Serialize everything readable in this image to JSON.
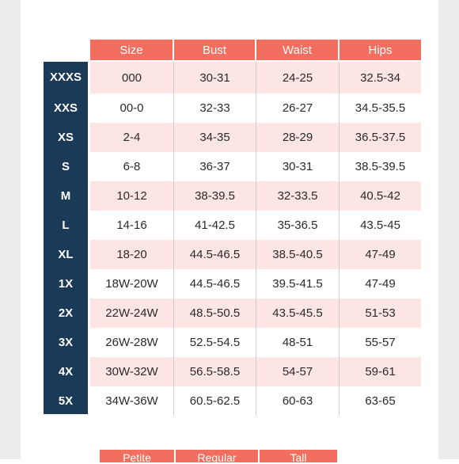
{
  "table": {
    "columns": [
      "Size",
      "Bust",
      "Waist",
      "Hips"
    ],
    "rows": [
      {
        "label": "XXXS",
        "size": "000",
        "bust": "30-31",
        "waist": "24-25",
        "hips": "32.5-34"
      },
      {
        "label": "XXS",
        "size": "00-0",
        "bust": "32-33",
        "waist": "26-27",
        "hips": "34.5-35.5"
      },
      {
        "label": "XS",
        "size": "2-4",
        "bust": "34-35",
        "waist": "28-29",
        "hips": "36.5-37.5"
      },
      {
        "label": "S",
        "size": "6-8",
        "bust": "36-37",
        "waist": "30-31",
        "hips": "38.5-39.5"
      },
      {
        "label": "M",
        "size": "10-12",
        "bust": "38-39.5",
        "waist": "32-33.5",
        "hips": "40.5-42"
      },
      {
        "label": "L",
        "size": "14-16",
        "bust": "41-42.5",
        "waist": "35-36.5",
        "hips": "43.5-45"
      },
      {
        "label": "XL",
        "size": "18-20",
        "bust": "44.5-46.5",
        "waist": "38.5-40.5",
        "hips": "47-49"
      },
      {
        "label": "1X",
        "size": "18W-20W",
        "bust": "44.5-46.5",
        "waist": "39.5-41.5",
        "hips": "47-49"
      },
      {
        "label": "2X",
        "size": "22W-24W",
        "bust": "48.5-50.5",
        "waist": "43.5-45.5",
        "hips": "51-53"
      },
      {
        "label": "3X",
        "size": "26W-28W",
        "bust": "52.5-54.5",
        "waist": "48-51",
        "hips": "55-57"
      },
      {
        "label": "4X",
        "size": "30W-32W",
        "bust": "56.5-58.5",
        "waist": "54-57",
        "hips": "59-61"
      },
      {
        "label": "5X",
        "size": "34W-36W",
        "bust": "60.5-62.5",
        "waist": "60-63",
        "hips": "63-65"
      }
    ]
  },
  "second_table": {
    "columns": [
      "Petite",
      "Regular",
      "Tall"
    ]
  },
  "colors": {
    "header": "#f26e5e",
    "size_column": "#1b3a57",
    "stripe": "#fde5e3"
  }
}
